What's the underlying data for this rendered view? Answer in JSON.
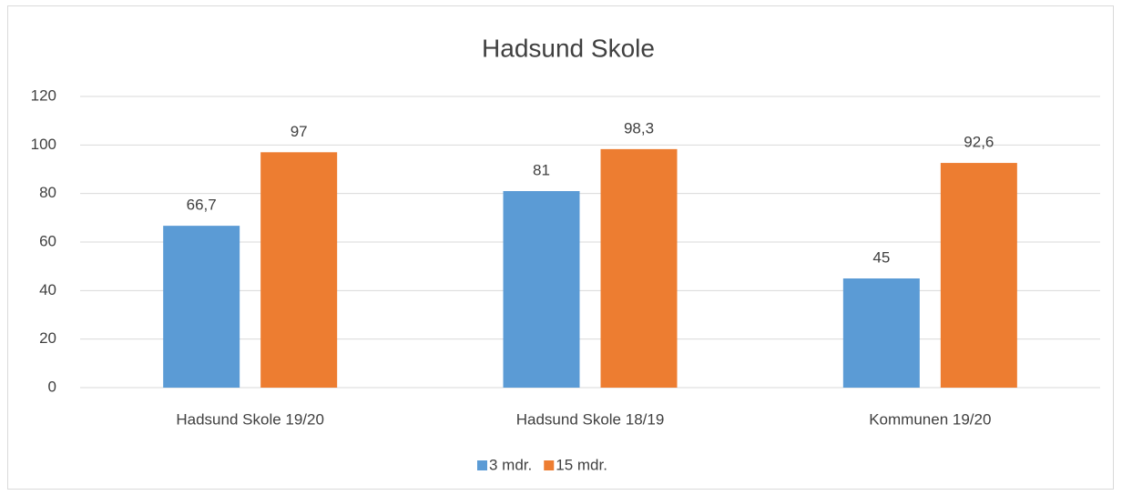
{
  "chart_data": {
    "type": "bar",
    "title": "Hadsund Skole",
    "categories": [
      "Hadsund Skole 19/20",
      "Hadsund Skole 18/19",
      "Kommunen 19/20"
    ],
    "series": [
      {
        "name": "3 mdr.",
        "color": "#5b9bd5",
        "values": [
          66.7,
          81,
          45
        ],
        "value_labels": [
          "66,7",
          "81",
          "45"
        ]
      },
      {
        "name": "15 mdr.",
        "color": "#ed7d31",
        "values": [
          97,
          98.3,
          92.6
        ],
        "value_labels": [
          "97",
          "98,3",
          "92,6"
        ]
      }
    ],
    "ylim": [
      0,
      120
    ],
    "yticks": [
      0,
      20,
      40,
      60,
      80,
      100,
      120
    ],
    "grid": true,
    "legend": "bottom"
  }
}
